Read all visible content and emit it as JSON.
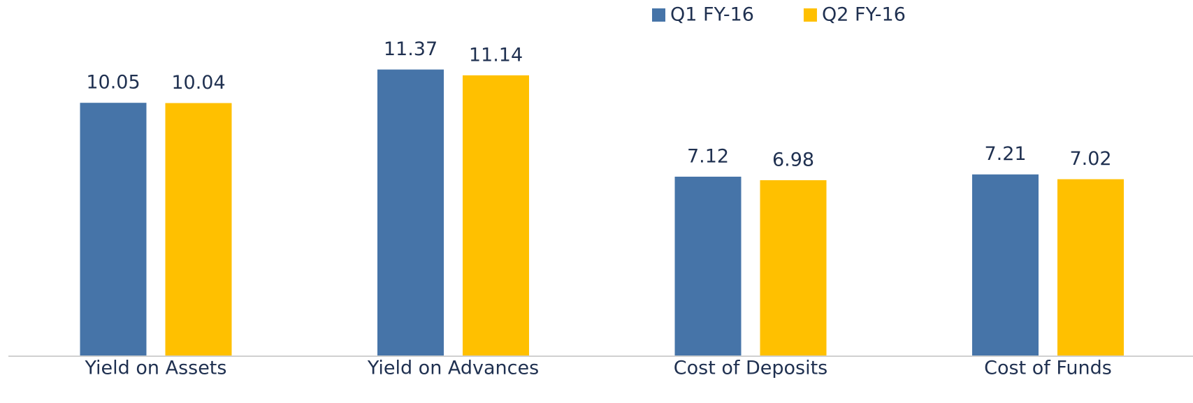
{
  "chart_data": {
    "type": "bar",
    "categories": [
      "Yield on Assets",
      "Yield on Advances",
      "Cost of Deposits",
      "Cost of Funds"
    ],
    "series": [
      {
        "name": "Q1 FY-16",
        "color": "#4674a8",
        "values": [
          10.05,
          11.37,
          7.12,
          7.21
        ]
      },
      {
        "name": "Q2 FY-16",
        "color": "#ffc000",
        "values": [
          10.04,
          11.14,
          6.98,
          7.02
        ]
      }
    ],
    "legend": "top"
  }
}
